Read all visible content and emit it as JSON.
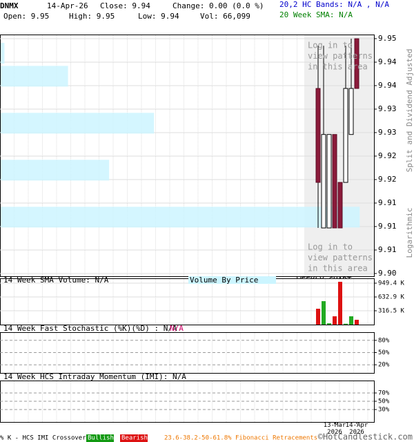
{
  "header": {
    "symbol": "DNMX",
    "date": "14-Apr-26",
    "close": "Close: 9.94",
    "change": "Change: 0.00 (0.0 %)",
    "bands": "20,2 HC Bands: N/A , N/A",
    "open": "Open: 9.95",
    "high": "High: 9.95",
    "low": "Low: 9.94",
    "volume": "Vol: 66,099",
    "sma": "20 Week SMA: N/A"
  },
  "chart_data": [
    {
      "type": "candlestick",
      "log_scale": true,
      "categories": [
        null,
        null,
        null,
        "13-Mar 2026",
        null,
        null,
        null,
        "14-Apr 2026"
      ],
      "open": [
        9.9394,
        9.9097,
        9.9097,
        9.9296,
        9.9194,
        9.9194,
        9.9296,
        9.95
      ],
      "high": [
        9.9485,
        9.9485,
        9.9296,
        9.9296,
        9.9194,
        9.9485,
        9.95,
        9.95
      ],
      "low": [
        9.9097,
        9.9097,
        9.9097,
        9.9097,
        9.9097,
        9.9194,
        9.9296,
        9.9394
      ],
      "close": [
        9.9194,
        9.9296,
        9.9296,
        9.9097,
        9.9097,
        9.9394,
        9.9394,
        9.9394
      ],
      "up_color": "#ffffff",
      "down_color": "#8b1a3a",
      "ylim": [
        9.9,
        9.95
      ],
      "yticks": [
        9.95,
        {
          "value": 9.945,
          "label": "9.94"
        },
        9.94,
        {
          "value": 9.935,
          "label": "9.93"
        },
        9.93,
        {
          "value": 9.925,
          "label": "9.92"
        },
        9.92,
        {
          "value": 9.915,
          "label": "9.91"
        },
        9.91,
        {
          "value": 9.905,
          "label": "9.91"
        },
        {
          "value": 9.9,
          "label": "9.90"
        }
      ],
      "grid": true,
      "volume_by_price": {
        "name": "Volume By Price",
        "color": "#ccf5ff",
        "levels": [
          9.9469,
          9.942,
          9.932,
          9.922,
          9.912
        ],
        "values": [
          1,
          18,
          41,
          29,
          96
        ]
      },
      "annotations": [
        [
          "Log in to",
          "view patterns",
          "in this area"
        ],
        [
          "Log in to",
          "view patterns",
          "in this area"
        ]
      ],
      "side_labels": [
        "Split and Dividend Adjusted",
        "Logarithmic"
      ],
      "chart_label": "WEEKLY CHART"
    },
    {
      "type": "volume",
      "title": "14 Week SMA Volume: N/A",
      "values": [
        363000,
        537000,
        30000,
        190000,
        980000,
        20000,
        190000,
        110000
      ],
      "up_color": "#22aa22",
      "down_color": "#dd1111",
      "ylim": [
        0,
        1060000
      ],
      "yticks": [
        {
          "value": 949400,
          "label": "949.4 K"
        },
        {
          "value": 632900,
          "label": "632.9 K"
        },
        {
          "value": 316500,
          "label": "316.5 K"
        }
      ]
    },
    {
      "type": "line",
      "title": "14 Week Fast Stochastic (%K)(%D) : N/A",
      "extra_label": "N/A",
      "extra_color": "#cc0066",
      "ylim": [
        0,
        100
      ],
      "yticks": [
        {
          "value": 80,
          "label": "80%"
        },
        {
          "value": 50,
          "label": "50%"
        },
        {
          "value": 20,
          "label": "20%"
        }
      ]
    },
    {
      "type": "line",
      "title": "14 Week HCS Intraday Momentum (IMI): N/A",
      "ylim": [
        0,
        100
      ],
      "yticks": [
        {
          "value": 70,
          "label": "70%"
        },
        {
          "value": 50,
          "label": "50%"
        },
        {
          "value": 30,
          "label": "30%"
        }
      ]
    }
  ],
  "footer": {
    "legend": "% K - HCS IMI Crossover,",
    "bullish": "Bullish",
    "bearish": "Bearish",
    "fibonacci": "23.6-38.2-50-61.8% Fibonacci Retracements",
    "copyright": "©HotCandlestick.com"
  }
}
